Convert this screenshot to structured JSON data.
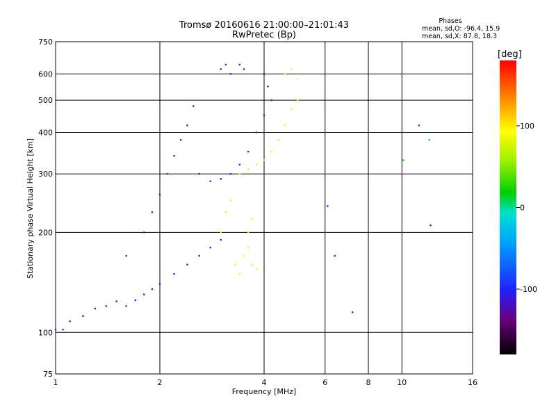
{
  "chart_data": {
    "type": "scatter",
    "title": "Tromsø 20160616 21:00:00–21:01:43",
    "subtitle": "RwPretec (Bp)",
    "xlabel": "Frequency [MHz]",
    "ylabel": "Stationary phase Virtual Height [km]",
    "x_scale": "log",
    "y_scale": "log",
    "xlim": [
      1,
      16
    ],
    "ylim": [
      75,
      750
    ],
    "x_ticks": [
      "1",
      "2",
      "4",
      "6",
      "8",
      "10",
      "16"
    ],
    "y_ticks": [
      "75",
      "100",
      "200",
      "300",
      "400",
      "500",
      "600",
      "750"
    ],
    "grid": true,
    "legend": {
      "heading": "Phases",
      "line1": "mean, sd,O: -96.4, 15.9",
      "line2": "mean, sd,X:  87.8, 18.3"
    },
    "colorbar": {
      "label": "[deg]",
      "range": [
        -180,
        180
      ],
      "ticks": [
        "100",
        "0",
        "-100"
      ]
    },
    "series": [
      {
        "mode": "O",
        "phase_mean": -96.4,
        "points": [
          [
            1.0,
            102
          ],
          [
            1.05,
            102
          ],
          [
            1.1,
            108
          ],
          [
            1.2,
            112
          ],
          [
            1.3,
            118
          ],
          [
            1.4,
            120
          ],
          [
            1.5,
            124
          ],
          [
            1.6,
            120
          ],
          [
            1.7,
            125
          ],
          [
            1.8,
            130
          ],
          [
            1.9,
            135
          ],
          [
            2.0,
            140
          ],
          [
            2.2,
            150
          ],
          [
            2.4,
            160
          ],
          [
            2.6,
            170
          ],
          [
            2.8,
            180
          ],
          [
            3.0,
            190
          ],
          [
            1.6,
            170
          ],
          [
            1.8,
            200
          ],
          [
            1.9,
            230
          ],
          [
            2.0,
            260
          ],
          [
            2.1,
            300
          ],
          [
            2.2,
            340
          ],
          [
            2.3,
            380
          ],
          [
            2.4,
            420
          ],
          [
            2.5,
            480
          ],
          [
            2.6,
            300
          ],
          [
            2.8,
            285
          ],
          [
            3.0,
            290
          ],
          [
            3.2,
            300
          ],
          [
            3.4,
            320
          ],
          [
            3.6,
            350
          ],
          [
            3.8,
            400
          ],
          [
            4.0,
            450
          ],
          [
            3.0,
            620
          ],
          [
            3.1,
            640
          ],
          [
            3.2,
            600
          ],
          [
            3.4,
            640
          ],
          [
            3.5,
            620
          ],
          [
            4.0,
            600
          ],
          [
            4.1,
            550
          ],
          [
            4.2,
            500
          ]
        ]
      },
      {
        "mode": "X",
        "phase_mean": 87.8,
        "points": [
          [
            3.0,
            200
          ],
          [
            3.1,
            230
          ],
          [
            3.2,
            250
          ],
          [
            3.3,
            160
          ],
          [
            3.4,
            150
          ],
          [
            3.5,
            170
          ],
          [
            3.6,
            180
          ],
          [
            3.7,
            160
          ],
          [
            3.8,
            155
          ],
          [
            3.6,
            200
          ],
          [
            3.7,
            220
          ],
          [
            3.4,
            300
          ],
          [
            3.6,
            310
          ],
          [
            3.8,
            320
          ],
          [
            4.0,
            330
          ],
          [
            4.2,
            350
          ],
          [
            4.4,
            380
          ],
          [
            4.6,
            420
          ],
          [
            4.8,
            470
          ],
          [
            5.0,
            500
          ],
          [
            4.6,
            600
          ],
          [
            4.8,
            620
          ],
          [
            5.0,
            580
          ]
        ]
      }
    ],
    "scatter_outliers": [
      {
        "x": 6.1,
        "y": 240,
        "phase": -100
      },
      {
        "x": 6.4,
        "y": 170,
        "phase": -100
      },
      {
        "x": 7.2,
        "y": 115,
        "phase": -100
      },
      {
        "x": 10.1,
        "y": 330,
        "phase": 20
      },
      {
        "x": 11.2,
        "y": 420,
        "phase": -80
      },
      {
        "x": 12.1,
        "y": 210,
        "phase": -100
      },
      {
        "x": 12.0,
        "y": 380,
        "phase": 10
      }
    ]
  }
}
